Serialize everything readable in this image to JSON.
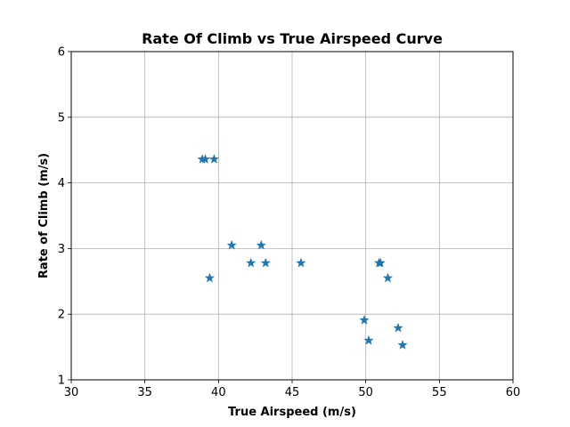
{
  "chart_data": {
    "type": "scatter",
    "title": "Rate Of Climb vs True Airspeed Curve",
    "xlabel": "True Airspeed (m/s)",
    "ylabel": "Rate of Climb (m/s)",
    "xlim": [
      30,
      60
    ],
    "ylim": [
      1,
      6
    ],
    "xticks": [
      30,
      35,
      40,
      45,
      50,
      55,
      60
    ],
    "yticks": [
      1,
      2,
      3,
      4,
      5,
      6
    ],
    "grid": true,
    "marker": "star",
    "color": "#1f77b4",
    "points": [
      {
        "x": 38.9,
        "y": 4.36
      },
      {
        "x": 39.1,
        "y": 4.36
      },
      {
        "x": 39.7,
        "y": 4.36
      },
      {
        "x": 39.4,
        "y": 2.55
      },
      {
        "x": 40.9,
        "y": 3.05
      },
      {
        "x": 42.9,
        "y": 3.05
      },
      {
        "x": 42.2,
        "y": 2.78
      },
      {
        "x": 43.2,
        "y": 2.78
      },
      {
        "x": 45.6,
        "y": 2.78
      },
      {
        "x": 50.9,
        "y": 2.78
      },
      {
        "x": 51.0,
        "y": 2.78
      },
      {
        "x": 51.5,
        "y": 2.55
      },
      {
        "x": 49.9,
        "y": 1.91
      },
      {
        "x": 50.2,
        "y": 1.6
      },
      {
        "x": 52.2,
        "y": 1.79
      },
      {
        "x": 52.5,
        "y": 1.53
      }
    ]
  }
}
